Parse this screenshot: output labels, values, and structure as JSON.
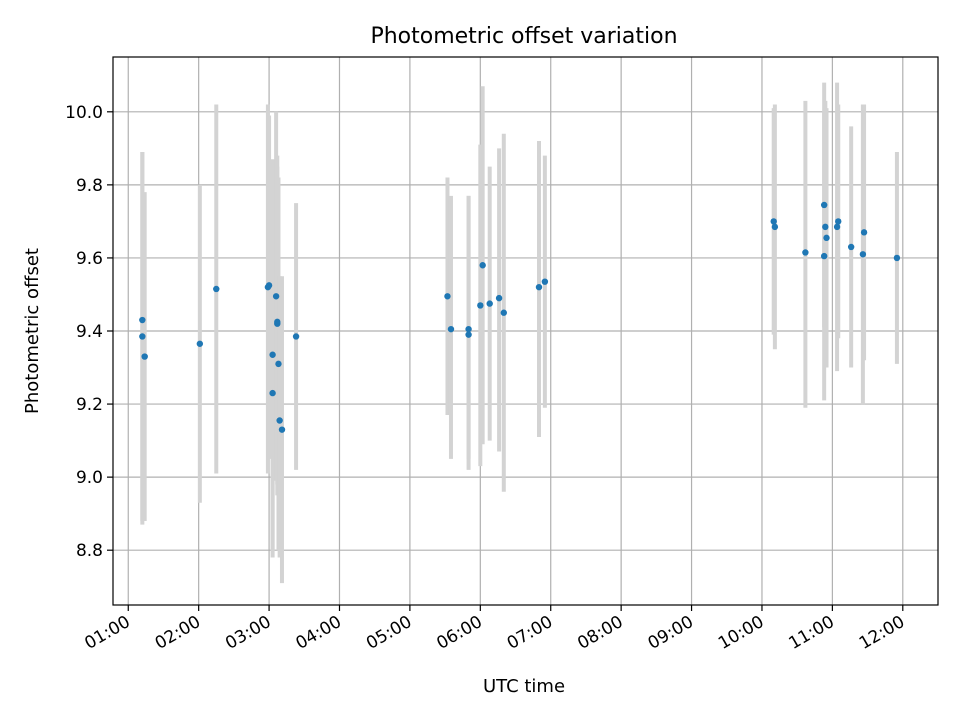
{
  "chart_data": {
    "type": "scatter",
    "title": "Photometric offset variation",
    "xlabel": "UTC time",
    "ylabel": "Photometric offset",
    "x_unit": "hours UTC",
    "xlim": [
      "00:47",
      "12:30"
    ],
    "ylim": [
      8.65,
      10.15
    ],
    "x_ticks": [
      "01:00",
      "02:00",
      "03:00",
      "04:00",
      "05:00",
      "06:00",
      "07:00",
      "08:00",
      "09:00",
      "10:00",
      "11:00",
      "12:00"
    ],
    "y_ticks": [
      "8.8",
      "9.0",
      "9.2",
      "9.4",
      "9.6",
      "9.8",
      "10.0"
    ],
    "grid": true,
    "colors": {
      "point": "#1f77b4",
      "errorbar": "#d3d3d3",
      "grid": "#b0b0b0"
    },
    "points": [
      {
        "x": "01:12",
        "y": 9.385,
        "lo": 8.87,
        "hi": 9.89
      },
      {
        "x": "01:12",
        "y": 9.43,
        "lo": 8.88,
        "hi": 9.89
      },
      {
        "x": "01:14",
        "y": 9.33,
        "lo": 8.88,
        "hi": 9.78
      },
      {
        "x": "02:01",
        "y": 9.365,
        "lo": 8.93,
        "hi": 9.8
      },
      {
        "x": "02:15",
        "y": 9.515,
        "lo": 9.01,
        "hi": 10.02
      },
      {
        "x": "02:59",
        "y": 9.52,
        "lo": 9.01,
        "hi": 10.02
      },
      {
        "x": "03:00",
        "y": 9.525,
        "lo": 9.05,
        "hi": 9.99
      },
      {
        "x": "03:03",
        "y": 9.335,
        "lo": 8.78,
        "hi": 9.87
      },
      {
        "x": "03:03",
        "y": 9.23,
        "lo": 8.8,
        "hi": 9.66
      },
      {
        "x": "03:06",
        "y": 9.495,
        "lo": 8.99,
        "hi": 10.0
      },
      {
        "x": "03:07",
        "y": 9.42,
        "lo": 8.95,
        "hi": 9.88
      },
      {
        "x": "03:07",
        "y": 9.425,
        "lo": 8.98,
        "hi": 9.85
      },
      {
        "x": "03:08",
        "y": 9.31,
        "lo": 8.8,
        "hi": 9.82
      },
      {
        "x": "03:09",
        "y": 9.155,
        "lo": 8.78,
        "hi": 9.55
      },
      {
        "x": "03:11",
        "y": 9.13,
        "lo": 8.71,
        "hi": 9.55
      },
      {
        "x": "03:23",
        "y": 9.385,
        "lo": 9.02,
        "hi": 9.75
      },
      {
        "x": "05:32",
        "y": 9.495,
        "lo": 9.17,
        "hi": 9.82
      },
      {
        "x": "05:35",
        "y": 9.405,
        "lo": 9.05,
        "hi": 9.77
      },
      {
        "x": "05:50",
        "y": 9.405,
        "lo": 9.02,
        "hi": 9.77
      },
      {
        "x": "05:50",
        "y": 9.39,
        "lo": 9.05,
        "hi": 9.77
      },
      {
        "x": "06:00",
        "y": 9.47,
        "lo": 9.03,
        "hi": 9.91
      },
      {
        "x": "06:02",
        "y": 9.58,
        "lo": 9.09,
        "hi": 10.07
      },
      {
        "x": "06:08",
        "y": 9.475,
        "lo": 9.1,
        "hi": 9.85
      },
      {
        "x": "06:16",
        "y": 9.49,
        "lo": 9.07,
        "hi": 9.9
      },
      {
        "x": "06:20",
        "y": 9.45,
        "lo": 8.96,
        "hi": 9.94
      },
      {
        "x": "06:50",
        "y": 9.52,
        "lo": 9.11,
        "hi": 9.92
      },
      {
        "x": "06:55",
        "y": 9.535,
        "lo": 9.19,
        "hi": 9.88
      },
      {
        "x": "10:10",
        "y": 9.7,
        "lo": 9.39,
        "hi": 10.01
      },
      {
        "x": "10:11",
        "y": 9.685,
        "lo": 9.35,
        "hi": 10.02
      },
      {
        "x": "10:37",
        "y": 9.615,
        "lo": 9.19,
        "hi": 10.03
      },
      {
        "x": "10:53",
        "y": 9.745,
        "lo": 9.41,
        "hi": 10.08
      },
      {
        "x": "10:53",
        "y": 9.605,
        "lo": 9.21,
        "hi": 10.0
      },
      {
        "x": "10:54",
        "y": 9.685,
        "lo": 9.34,
        "hi": 10.03
      },
      {
        "x": "10:55",
        "y": 9.655,
        "lo": 9.3,
        "hi": 10.01
      },
      {
        "x": "11:04",
        "y": 9.685,
        "lo": 9.29,
        "hi": 10.08
      },
      {
        "x": "11:05",
        "y": 9.7,
        "lo": 9.38,
        "hi": 10.02
      },
      {
        "x": "11:16",
        "y": 9.63,
        "lo": 9.3,
        "hi": 9.96
      },
      {
        "x": "11:26",
        "y": 9.61,
        "lo": 9.2,
        "hi": 10.02
      },
      {
        "x": "11:27",
        "y": 9.67,
        "lo": 9.32,
        "hi": 10.02
      },
      {
        "x": "11:55",
        "y": 9.6,
        "lo": 9.31,
        "hi": 9.89
      }
    ]
  }
}
